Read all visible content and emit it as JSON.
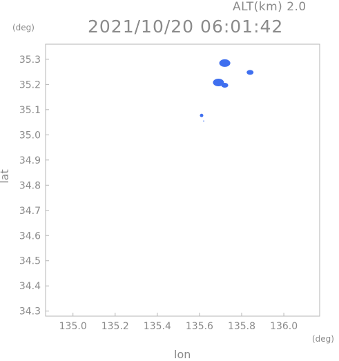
{
  "header": {
    "altitude": "ALT(km) 2.0",
    "timestamp": "2021/10/20 06:01:42"
  },
  "chart_data": {
    "type": "scatter",
    "title": "2021/10/20 06:01:42",
    "xlabel": "lon",
    "ylabel": "lat",
    "x_unit": "(deg)",
    "y_unit": "(deg)",
    "xlim": [
      134.87,
      136.17
    ],
    "ylim": [
      34.28,
      35.36
    ],
    "x_ticks": [
      "135.0",
      "135.2",
      "135.4",
      "135.6",
      "135.8",
      "136.0"
    ],
    "y_ticks": [
      "35.3",
      "35.2",
      "35.1",
      "35.0",
      "34.9",
      "34.8",
      "34.7",
      "34.6",
      "34.5",
      "34.4",
      "34.3"
    ],
    "grid": false,
    "series": [
      {
        "color": "#3f6fef",
        "points": [
          {
            "lon": 135.72,
            "lat": 35.285,
            "size": "large"
          },
          {
            "lon": 135.84,
            "lat": 35.248,
            "size": "small"
          },
          {
            "lon": 135.69,
            "lat": 35.208,
            "size": "large"
          },
          {
            "lon": 135.72,
            "lat": 35.197,
            "size": "small"
          },
          {
            "lon": 135.61,
            "lat": 35.077,
            "size": "tiny"
          },
          {
            "lon": 135.62,
            "lat": 35.055,
            "size": "dot"
          }
        ]
      }
    ]
  }
}
